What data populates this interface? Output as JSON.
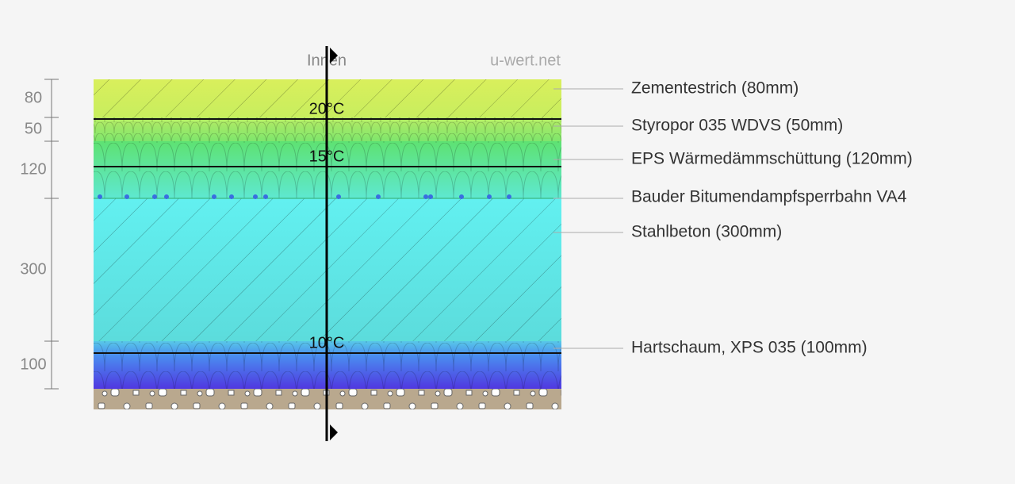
{
  "header": {
    "inside": "Innen",
    "source": "u-wert.net"
  },
  "dimensions": [
    80,
    50,
    120,
    300,
    100
  ],
  "layers": [
    {
      "label": "Zementestrich (80mm)"
    },
    {
      "label": "Styropor 035 WDVS (50mm)"
    },
    {
      "label": "EPS Wärmedämmschüttung (120mm)"
    },
    {
      "label": "Bauder Bitumendampfsperrbahn VA4"
    },
    {
      "label": "Stahlbeton (300mm)"
    },
    {
      "label": "Hartschaum, XPS 035 (100mm)"
    }
  ],
  "temperatures": [
    "20°C",
    "15°C",
    "10°C"
  ]
}
